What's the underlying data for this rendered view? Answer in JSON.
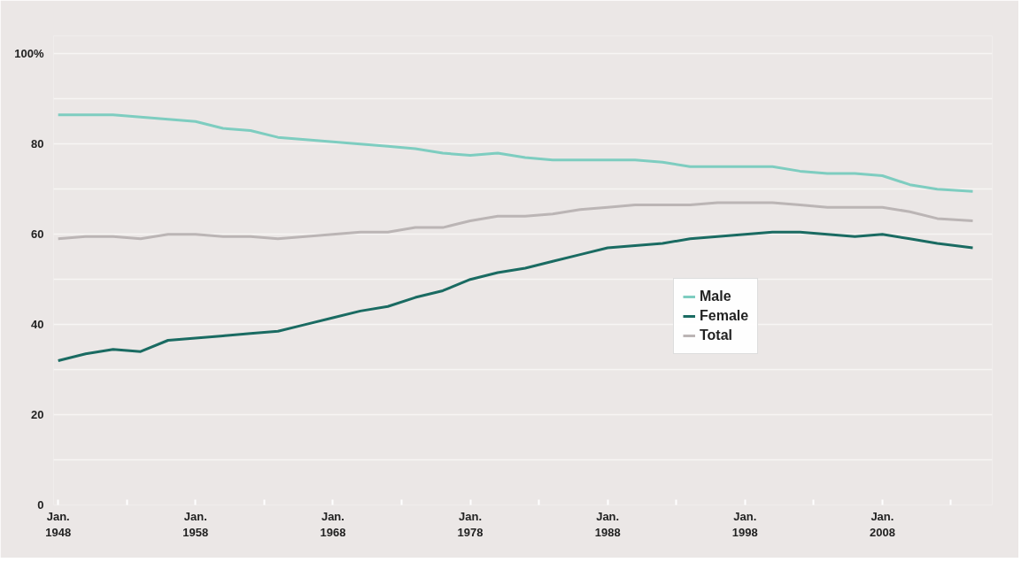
{
  "chart_data": {
    "type": "line",
    "x": [
      "1948-01",
      "1950-01",
      "1952-01",
      "1954-01",
      "1956-01",
      "1958-01",
      "1960-01",
      "1962-01",
      "1964-01",
      "1966-01",
      "1968-01",
      "1970-01",
      "1972-01",
      "1974-01",
      "1976-01",
      "1978-01",
      "1980-01",
      "1982-01",
      "1984-01",
      "1986-01",
      "1988-01",
      "1990-01",
      "1992-01",
      "1994-01",
      "1996-01",
      "1998-01",
      "2000-01",
      "2002-01",
      "2004-01",
      "2006-01",
      "2008-01",
      "2010-01",
      "2012-01",
      "2014-08"
    ],
    "series": [
      {
        "name": "Male",
        "color": "#7ecdc0",
        "values": [
          86.5,
          86.5,
          86.5,
          86,
          85.5,
          85,
          83.5,
          83,
          81.5,
          81,
          80.5,
          80,
          79.5,
          79,
          78,
          77.5,
          78,
          77,
          76.5,
          76.5,
          76.5,
          76.5,
          76,
          75,
          75,
          75,
          75,
          74,
          73.5,
          73.5,
          73,
          71,
          70,
          69.5
        ]
      },
      {
        "name": "Female",
        "color": "#1a6b62",
        "values": [
          32,
          33.5,
          34.5,
          34,
          36.5,
          37,
          37.5,
          38,
          38.5,
          40,
          41.5,
          43,
          44,
          46,
          47.5,
          50,
          51.5,
          52.5,
          54,
          55.5,
          57,
          57.5,
          58,
          59,
          59.5,
          60,
          60.5,
          60.5,
          60,
          59.5,
          60,
          59,
          58,
          57
        ]
      },
      {
        "name": "Total",
        "color": "#bbb5b5",
        "values": [
          59,
          59.5,
          59.5,
          59,
          60,
          60,
          59.5,
          59.5,
          59,
          59.5,
          60,
          60.5,
          60.5,
          61.5,
          61.5,
          63,
          64,
          64,
          64.5,
          65.5,
          66,
          66.5,
          66.5,
          66.5,
          67,
          67,
          67,
          66.5,
          66,
          66,
          66,
          65,
          63.5,
          63
        ]
      }
    ],
    "xlim": [
      "1947-09",
      "2016-01"
    ],
    "xticks": [
      {
        "value": "1948-01",
        "label": "Jan.\n1948"
      },
      {
        "value": "1953-01",
        "label": null
      },
      {
        "value": "1958-01",
        "label": "Jan.\n1958"
      },
      {
        "value": "1963-01",
        "label": null
      },
      {
        "value": "1968-01",
        "label": "Jan.\n1968"
      },
      {
        "value": "1973-01",
        "label": null
      },
      {
        "value": "1978-01",
        "label": "Jan.\n1978"
      },
      {
        "value": "1983-01",
        "label": null
      },
      {
        "value": "1988-01",
        "label": "Jan.\n1988"
      },
      {
        "value": "1993-01",
        "label": null
      },
      {
        "value": "1998-01",
        "label": "Jan.\n1998"
      },
      {
        "value": "2003-01",
        "label": null
      },
      {
        "value": "2008-01",
        "label": "Jan.\n2008"
      },
      {
        "value": "2013-01",
        "label": null
      }
    ],
    "ylim": [
      0,
      104
    ],
    "yticks": [
      0,
      {
        "value": 10,
        "label": null
      },
      20,
      {
        "value": 30,
        "label": null
      },
      40,
      {
        "value": 50,
        "label": null
      },
      60,
      {
        "value": 70,
        "label": null
      },
      80,
      {
        "value": 90,
        "label": null
      },
      {
        "value": 100,
        "label": "100%"
      }
    ],
    "grid": "y",
    "legend": "right",
    "marker": "none",
    "line_style": "solid"
  }
}
